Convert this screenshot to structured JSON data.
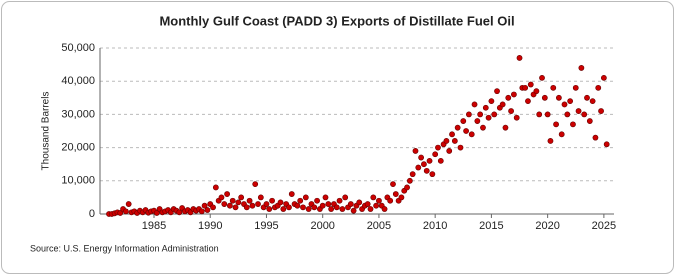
{
  "chart_data": {
    "type": "scatter",
    "title": "Monthly Gulf Coast (PADD 3) Exports of Distillate Fuel Oil",
    "y_label": "Thousand Barrels",
    "source": "Source: U.S. Energy Information Administration",
    "x": [
      1981,
      1981.25,
      1981.5,
      1981.75,
      1982,
      1982.25,
      1982.5,
      1982.75,
      1983,
      1983.25,
      1983.5,
      1983.75,
      1984,
      1984.25,
      1984.5,
      1984.75,
      1985,
      1985.25,
      1985.5,
      1985.75,
      1986,
      1986.25,
      1986.5,
      1986.75,
      1987,
      1987.25,
      1987.5,
      1987.75,
      1988,
      1988.25,
      1988.5,
      1988.75,
      1989,
      1989.25,
      1989.5,
      1989.75,
      1990,
      1990.25,
      1990.5,
      1990.75,
      1991,
      1991.25,
      1991.5,
      1991.75,
      1992,
      1992.25,
      1992.5,
      1992.75,
      1993,
      1993.25,
      1993.5,
      1993.75,
      1994,
      1994.25,
      1994.5,
      1994.75,
      1995,
      1995.25,
      1995.5,
      1995.75,
      1996,
      1996.25,
      1996.5,
      1996.75,
      1997,
      1997.25,
      1997.5,
      1997.75,
      1998,
      1998.25,
      1998.5,
      1998.75,
      1999,
      1999.25,
      1999.5,
      1999.75,
      2000,
      2000.25,
      2000.5,
      2000.75,
      2001,
      2001.25,
      2001.5,
      2001.75,
      2002,
      2002.25,
      2002.5,
      2002.75,
      2003,
      2003.25,
      2003.5,
      2003.75,
      2004,
      2004.25,
      2004.5,
      2004.75,
      2005,
      2005.25,
      2005.5,
      2005.75,
      2006,
      2006.25,
      2006.5,
      2006.75,
      2007,
      2007.25,
      2007.5,
      2007.75,
      2008,
      2008.25,
      2008.5,
      2008.75,
      2009,
      2009.25,
      2009.5,
      2009.75,
      2010,
      2010.25,
      2010.5,
      2010.75,
      2011,
      2011.25,
      2011.5,
      2011.75,
      2012,
      2012.25,
      2012.5,
      2012.75,
      2013,
      2013.25,
      2013.5,
      2013.75,
      2014,
      2014.25,
      2014.5,
      2014.75,
      2015,
      2015.25,
      2015.5,
      2015.75,
      2016,
      2016.25,
      2016.5,
      2016.75,
      2017,
      2017.25,
      2017.5,
      2017.75,
      2018,
      2018.25,
      2018.5,
      2018.75,
      2019,
      2019.25,
      2019.5,
      2019.75,
      2020,
      2020.25,
      2020.5,
      2020.75,
      2021,
      2021.25,
      2021.5,
      2021.75,
      2022,
      2022.25,
      2022.5,
      2022.75,
      2023,
      2023.25,
      2023.5,
      2023.75,
      2024,
      2024.25,
      2024.5,
      2024.75,
      2025,
      2025.25
    ],
    "series": [
      {
        "color": "#cc0000",
        "values": [
          0,
          0,
          200,
          500,
          300,
          1500,
          800,
          3000,
          500,
          800,
          300,
          1000,
          500,
          1200,
          400,
          800,
          1000,
          300,
          1500,
          500,
          800,
          1200,
          500,
          1500,
          1000,
          500,
          1800,
          800,
          1200,
          500,
          1500,
          1000,
          1500,
          800,
          2500,
          1200,
          3000,
          2000,
          8000,
          4000,
          5000,
          3000,
          6000,
          2500,
          4000,
          2000,
          3500,
          5000,
          3000,
          2000,
          4000,
          2500,
          9000,
          3000,
          5000,
          2000,
          3000,
          1500,
          4000,
          2000,
          2500,
          3500,
          1500,
          3000,
          2000,
          6000,
          3000,
          2500,
          4000,
          2000,
          5000,
          1500,
          3000,
          2000,
          4000,
          1500,
          2500,
          5000,
          3000,
          1500,
          3000,
          2000,
          4000,
          1500,
          5000,
          2000,
          3000,
          1000,
          2500,
          3500,
          1500,
          2500,
          3000,
          1500,
          5000,
          2500,
          4000,
          2500,
          1500,
          5000,
          4000,
          9000,
          6000,
          4000,
          5000,
          7000,
          8000,
          10000,
          12000,
          19000,
          14000,
          17000,
          15000,
          13000,
          16000,
          12000,
          18000,
          20000,
          16000,
          21000,
          22000,
          19000,
          24000,
          22000,
          26000,
          20000,
          28000,
          25000,
          30000,
          24000,
          33000,
          28000,
          30000,
          26000,
          32000,
          29000,
          34000,
          30000,
          37000,
          32000,
          33000,
          26000,
          35000,
          31000,
          36000,
          29000,
          47000,
          38000,
          38000,
          34000,
          39000,
          36000,
          37000,
          30000,
          41000,
          35000,
          30000,
          22000,
          38000,
          27000,
          35000,
          24000,
          33000,
          30000,
          34000,
          27000,
          38000,
          31000,
          44000,
          30000,
          35000,
          28000,
          34000,
          23000,
          38000,
          31000,
          41000,
          21000
        ]
      }
    ],
    "xlim": [
      1980.2,
      2025.9
    ],
    "xticks": [
      1985,
      1990,
      1995,
      2000,
      2005,
      2010,
      2015,
      2020,
      2025
    ],
    "ylim": [
      0,
      50000
    ],
    "yticks": [
      0,
      {
        "value": 10000,
        "label": "10,000"
      },
      {
        "value": 20000,
        "label": "20,000"
      },
      {
        "value": 30000,
        "label": "30,000"
      },
      {
        "value": 40000,
        "label": "40,000"
      },
      {
        "value": 50000,
        "label": "50,000"
      }
    ],
    "grid": true
  }
}
